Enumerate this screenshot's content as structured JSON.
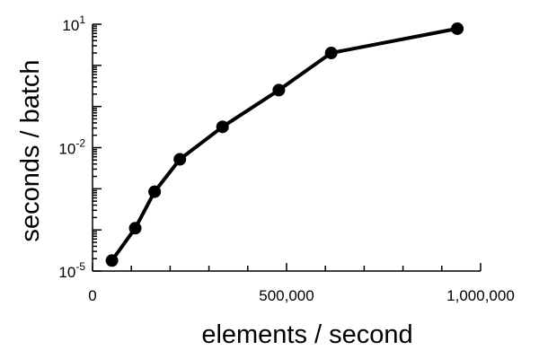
{
  "chart_data": {
    "type": "line",
    "xlabel": "elements / second",
    "ylabel": "seconds / batch",
    "x_scale": "linear",
    "y_scale": "log",
    "xlim": [
      0,
      1000000
    ],
    "ylim": [
      1e-05,
      10
    ],
    "x_ticks": [
      {
        "value": 0,
        "label": "0"
      },
      {
        "value": 500000,
        "label": "500,000"
      },
      {
        "value": 1000000,
        "label": "1,000,000"
      }
    ],
    "y_ticks": [
      {
        "value": 1e-05,
        "base": "10",
        "exp": "-5"
      },
      {
        "value": 0.01,
        "base": "10",
        "exp": "-2"
      },
      {
        "value": 10,
        "base": "10",
        "exp": "1"
      }
    ],
    "grid": false,
    "series": [
      {
        "color": "#000000",
        "x": [
          50000,
          110000,
          160000,
          225000,
          335000,
          480000,
          615000,
          940000
        ],
        "y": [
          1.8e-05,
          0.00011,
          0.00085,
          0.0052,
          0.032,
          0.25,
          2.0,
          7.8
        ]
      }
    ]
  }
}
